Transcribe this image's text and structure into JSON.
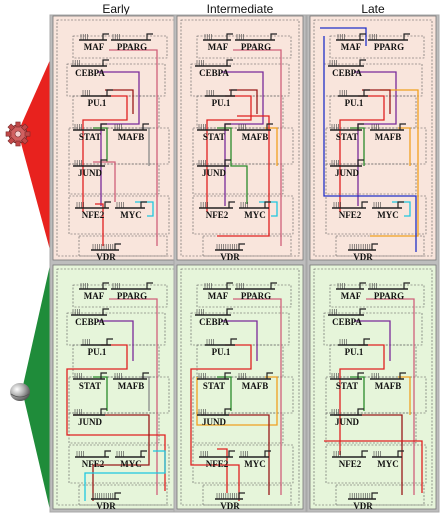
{
  "columns": [
    "Early",
    "Intermediate",
    "Late"
  ],
  "genes": [
    "MAF",
    "PPARG",
    "CEBPA",
    "PU.1",
    "STAT",
    "MAFB",
    "JUND",
    "NFE2",
    "MYC",
    "VDR"
  ],
  "colors": {
    "top_panel_bg": "#f9e5dc",
    "bottom_panel_bg": "#e6f5da",
    "frame_outer": "#a8a8a8",
    "top_wedge": "#e8221e",
    "bottom_wedge": "#1f8c3a",
    "link_red": "#e02020",
    "link_darkred": "#9a1a1a",
    "link_pink": "#d0607a",
    "link_purple": "#7a2a9a",
    "link_green": "#2a8a2a",
    "link_cyan": "#1ec8e0",
    "link_blue": "#2030c8",
    "link_orange": "#f0a020",
    "link_gray": "#8a8a8a"
  },
  "icons": {
    "top": "gear-icon",
    "bottom": "sphere-icon"
  }
}
